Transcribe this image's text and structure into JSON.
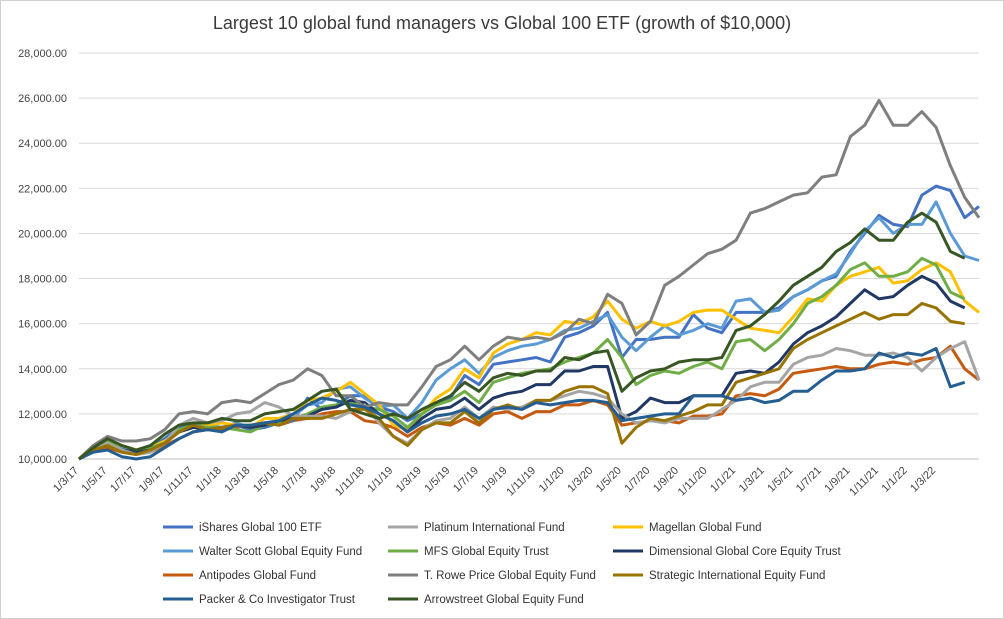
{
  "chart_data": {
    "type": "line",
    "title": "Largest 10 global fund managers vs Global 100 ETF (growth of $10,000)",
    "ylim": [
      10000,
      28000
    ],
    "y_ticks": [
      "10,000.00",
      "12,000.00",
      "14,000.00",
      "16,000.00",
      "18,000.00",
      "20,000.00",
      "22,000.00",
      "24,000.00",
      "26,000.00",
      "28,000.00"
    ],
    "x_tick_labels": [
      "1/3/17",
      "1/5/17",
      "1/7/17",
      "1/9/17",
      "1/11/17",
      "1/1/18",
      "1/3/18",
      "1/5/18",
      "1/7/18",
      "1/9/18",
      "1/11/18",
      "1/1/19",
      "1/3/19",
      "1/5/19",
      "1/7/19",
      "1/9/19",
      "1/11/19",
      "1/1/20",
      "1/3/20",
      "1/5/20",
      "1/7/20",
      "1/9/20",
      "1/11/20",
      "1/1/21",
      "1/3/21",
      "1/5/21",
      "1/7/21",
      "1/9/21",
      "1/11/21",
      "1/1/22",
      "1/3/22"
    ],
    "grid": "horizontal",
    "legend": "bottom",
    "series": [
      {
        "name": "iShares Global 100 ETF",
        "color": "#4472c4",
        "width": 3,
        "values": [
          10000,
          10500,
          10900,
          10500,
          10300,
          10500,
          10900,
          11400,
          11600,
          11300,
          11400,
          11500,
          11300,
          11400,
          11600,
          11700,
          12700,
          12200,
          12400,
          12800,
          12800,
          12300,
          12100,
          11700,
          12000,
          12500,
          12700,
          13700,
          13300,
          14200,
          14300,
          14400,
          14500,
          14300,
          15400,
          15600,
          15900,
          16500,
          14500,
          15300,
          15300,
          15400,
          15400,
          16400,
          15800,
          15600,
          16500,
          16500,
          16500,
          16700,
          17200,
          17500,
          17900,
          18100,
          19200,
          20000,
          20800,
          20400,
          20300,
          21700,
          22100,
          21900,
          20700,
          21200
        ]
      },
      {
        "name": "Platinum International Fund",
        "color": "#a5a5a5",
        "width": 3,
        "values": [
          10000,
          10400,
          10700,
          10400,
          10200,
          10300,
          10700,
          11500,
          11800,
          11600,
          11700,
          12000,
          12100,
          12500,
          12300,
          11900,
          11900,
          11900,
          11800,
          12100,
          12400,
          11600,
          11000,
          10700,
          11300,
          11700,
          11800,
          12300,
          11800,
          12300,
          12200,
          12300,
          12600,
          12600,
          12800,
          13000,
          12900,
          12700,
          12000,
          11600,
          11700,
          11600,
          11800,
          11800,
          11800,
          12200,
          12600,
          13200,
          13400,
          13400,
          14200,
          14500,
          14600,
          14900,
          14800,
          14600,
          14600,
          14700,
          14500,
          13900,
          14500,
          14900,
          15200,
          13500
        ]
      },
      {
        "name": "Magellan Global Fund",
        "color": "#ffc000",
        "width": 3,
        "values": [
          10000,
          10600,
          10800,
          10600,
          10400,
          10500,
          10800,
          11200,
          11400,
          11500,
          11600,
          11500,
          11400,
          11800,
          11800,
          12000,
          12600,
          12700,
          13000,
          13400,
          12900,
          12400,
          11500,
          11300,
          12000,
          12700,
          13100,
          14000,
          13600,
          14700,
          15100,
          15300,
          15600,
          15500,
          16100,
          16000,
          16300,
          17000,
          16200,
          15800,
          16100,
          15900,
          16100,
          16500,
          16600,
          16600,
          16200,
          15800,
          15700,
          15600,
          16300,
          17100,
          17000,
          17700,
          18100,
          18300,
          18500,
          17800,
          17900,
          18400,
          18700,
          18300,
          17000,
          16500
        ]
      },
      {
        "name": "Walter Scott Global Equity Fund",
        "color": "#5b9bd5",
        "width": 3,
        "values": [
          10000,
          10400,
          10600,
          10500,
          10300,
          10500,
          10700,
          11200,
          11500,
          11500,
          11400,
          11600,
          11400,
          11500,
          11700,
          11900,
          12400,
          12500,
          13100,
          13200,
          12700,
          12300,
          12400,
          11800,
          12500,
          13500,
          14000,
          14400,
          13800,
          14500,
          14800,
          15000,
          15100,
          15300,
          15700,
          15800,
          16100,
          16400,
          15400,
          14800,
          15400,
          15900,
          15500,
          15700,
          16000,
          15800,
          17000,
          17100,
          16500,
          16600,
          17200,
          17500,
          17900,
          18200,
          19100,
          20100,
          20700,
          20000,
          20400,
          20400,
          21400,
          20000,
          19000,
          18800
        ]
      },
      {
        "name": "MFS Global Equity Trust",
        "color": "#70ad47",
        "width": 3,
        "values": [
          10000,
          10500,
          10800,
          10400,
          10200,
          10500,
          10700,
          11300,
          11500,
          11400,
          11400,
          11300,
          11200,
          11500,
          11600,
          11800,
          12000,
          12300,
          12400,
          12500,
          12300,
          12200,
          11900,
          11400,
          12000,
          12400,
          12600,
          13000,
          12500,
          13400,
          13600,
          13800,
          13900,
          14000,
          14300,
          14500,
          14700,
          15300,
          14500,
          13300,
          13700,
          13900,
          13800,
          14100,
          14300,
          14000,
          15200,
          15300,
          14800,
          15300,
          16000,
          16900,
          17200,
          17700,
          18400,
          18700,
          18100,
          18100,
          18300,
          18900,
          18600,
          17400,
          17100
        ]
      },
      {
        "name": "Dimensional Global Core Equity Trust",
        "color": "#203864",
        "width": 3,
        "values": [
          10000,
          10400,
          10600,
          10400,
          10300,
          10400,
          10700,
          11200,
          11400,
          11300,
          11400,
          11500,
          11400,
          11500,
          11700,
          11800,
          11900,
          12200,
          12300,
          12600,
          12500,
          12000,
          11700,
          11200,
          11800,
          12200,
          12300,
          12700,
          12200,
          12700,
          12900,
          13000,
          13300,
          13300,
          13900,
          13900,
          14100,
          14100,
          11800,
          12100,
          12700,
          12500,
          12500,
          12800,
          12800,
          12800,
          13800,
          13900,
          13800,
          14300,
          15100,
          15600,
          15900,
          16300,
          16900,
          17500,
          17100,
          17200,
          17700,
          18100,
          17800,
          17000,
          16700
        ]
      },
      {
        "name": "Antipodes Global Fund",
        "color": "#c55a11",
        "width": 3,
        "values": [
          10000,
          10400,
          10500,
          10300,
          10200,
          10300,
          10600,
          10900,
          11200,
          11300,
          11300,
          11400,
          11500,
          11600,
          11500,
          11700,
          11800,
          12000,
          12100,
          12100,
          11700,
          11600,
          11400,
          11000,
          11400,
          11600,
          11500,
          11800,
          11500,
          12000,
          12100,
          11800,
          12100,
          12100,
          12400,
          12400,
          12600,
          12400,
          11500,
          11600,
          11700,
          11700,
          11600,
          11900,
          11900,
          12000,
          12800,
          12900,
          12800,
          13100,
          13800,
          13900,
          14000,
          14100,
          14000,
          14000,
          14200,
          14300,
          14200,
          14400,
          14500,
          15000,
          14000,
          13500
        ]
      },
      {
        "name": "T. Rowe Price Global Equity Fund",
        "color": "#7f7f7f",
        "width": 3,
        "values": [
          10000,
          10600,
          11000,
          10800,
          10800,
          10900,
          11300,
          12000,
          12100,
          12000,
          12500,
          12600,
          12500,
          12900,
          13300,
          13500,
          14000,
          13700,
          12800,
          12800,
          12300,
          12500,
          12400,
          12400,
          13200,
          14100,
          14400,
          15000,
          14400,
          15000,
          15400,
          15300,
          15400,
          15300,
          15600,
          16200,
          16000,
          17300,
          16900,
          15500,
          16100,
          17700,
          18100,
          18600,
          19100,
          19300,
          19700,
          20900,
          21100,
          21400,
          21700,
          21800,
          22500,
          22600,
          24300,
          24800,
          25900,
          24800,
          24800,
          25400,
          24700,
          23000,
          21600,
          20700
        ]
      },
      {
        "name": "Strategic International Equity Fund",
        "color": "#997300",
        "width": 3,
        "values": [
          10000,
          10400,
          10600,
          10300,
          10200,
          10400,
          10700,
          11200,
          11500,
          11300,
          11400,
          11500,
          11500,
          11600,
          11500,
          11800,
          11800,
          11800,
          12000,
          12200,
          12200,
          11800,
          11000,
          10600,
          11300,
          11600,
          11600,
          12100,
          11600,
          12200,
          12400,
          12200,
          12600,
          12600,
          13000,
          13200,
          13200,
          12900,
          10700,
          11400,
          11800,
          11700,
          11900,
          12100,
          12400,
          12400,
          13400,
          13600,
          13800,
          14000,
          14900,
          15300,
          15600,
          15900,
          16200,
          16500,
          16200,
          16400,
          16400,
          16900,
          16700,
          16100,
          16000
        ]
      },
      {
        "name": "Packer & Co Investigator Trust",
        "color": "#255e91",
        "width": 3,
        "values": [
          10000,
          10300,
          10400,
          10100,
          10000,
          10100,
          10500,
          10900,
          11200,
          11300,
          11200,
          11500,
          11500,
          11600,
          11700,
          12000,
          12400,
          12700,
          12600,
          12400,
          12300,
          12000,
          11700,
          11200,
          11600,
          11900,
          12000,
          12200,
          11800,
          12200,
          12300,
          12200,
          12500,
          12400,
          12500,
          12600,
          12600,
          12500,
          11700,
          11800,
          11900,
          12000,
          12000,
          12800,
          12800,
          12800,
          12600,
          12700,
          12500,
          12600,
          13000,
          13000,
          13500,
          13900,
          13900,
          14000,
          14700,
          14500,
          14700,
          14600,
          14900,
          13200,
          13400
        ]
      },
      {
        "name": "Arrowstreet Global Equity Fund",
        "color": "#375623",
        "width": 3,
        "values": [
          10000,
          10500,
          10900,
          10600,
          10400,
          10600,
          11100,
          11500,
          11600,
          11600,
          11800,
          11700,
          11700,
          12000,
          12100,
          12200,
          12600,
          13000,
          13100,
          12200,
          12000,
          11800,
          12000,
          11800,
          12200,
          12500,
          12800,
          13400,
          13000,
          13600,
          13800,
          13700,
          13900,
          13900,
          14500,
          14400,
          14700,
          14800,
          13000,
          13600,
          13900,
          14000,
          14300,
          14400,
          14400,
          14500,
          15700,
          15900,
          16400,
          17000,
          17700,
          18100,
          18500,
          19200,
          19600,
          20200,
          19700,
          19700,
          20500,
          20900,
          20500,
          19200,
          18900
        ]
      }
    ]
  }
}
